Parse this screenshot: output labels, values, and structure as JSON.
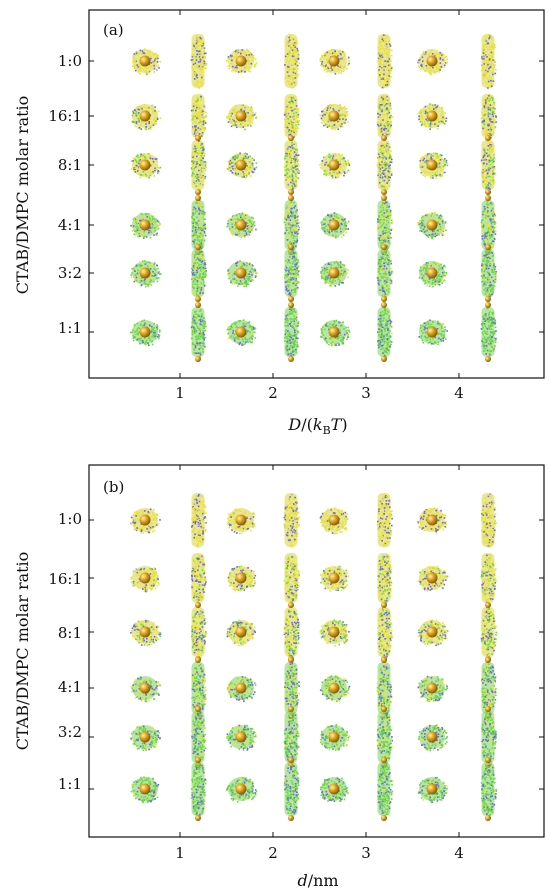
{
  "chart_data": [
    {
      "type": "image-grid",
      "panel_label": "(a)",
      "xlabel": "D/(kBT)",
      "ylabel": "CTAB/DMPC molar ratio",
      "x_ticks": [
        "1",
        "2",
        "3",
        "4"
      ],
      "y_ticks": [
        "1:0",
        "16:1",
        "8:1",
        "4:1",
        "3:2",
        "1:1"
      ],
      "grid": false,
      "columns_per_x": 2,
      "column_shapes": [
        "sphere",
        "rod"
      ],
      "colors": {
        "head": "#e8e23a",
        "tail": "#6b6ad8",
        "lipid": "#6ad84a",
        "core": "#d9a020"
      }
    },
    {
      "type": "image-grid",
      "panel_label": "(b)",
      "xlabel": "d/nm",
      "ylabel": "CTAB/DMPC molar ratio",
      "x_ticks": [
        "1",
        "2",
        "3",
        "4"
      ],
      "y_ticks": [
        "1:0",
        "16:1",
        "8:1",
        "4:1",
        "3:2",
        "1:1"
      ],
      "grid": false,
      "columns_per_x": 2,
      "column_shapes": [
        "sphere",
        "rod"
      ],
      "colors": {
        "head": "#e8e23a",
        "tail": "#6b6ad8",
        "lipid": "#6ad84a",
        "core": "#d9a020"
      }
    }
  ]
}
